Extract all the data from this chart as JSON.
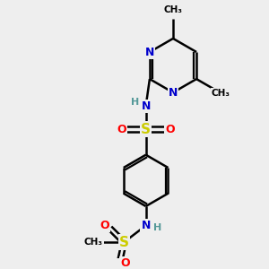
{
  "bg_color": "#eeeeee",
  "atom_colors": {
    "C": "#000000",
    "N": "#0000cc",
    "S": "#cccc00",
    "O": "#ff0000",
    "H": "#559999"
  },
  "bond_color": "#000000",
  "figsize": [
    3.0,
    3.0
  ],
  "dpi": 100,
  "xlim": [
    0,
    10
  ],
  "ylim": [
    0,
    10
  ]
}
